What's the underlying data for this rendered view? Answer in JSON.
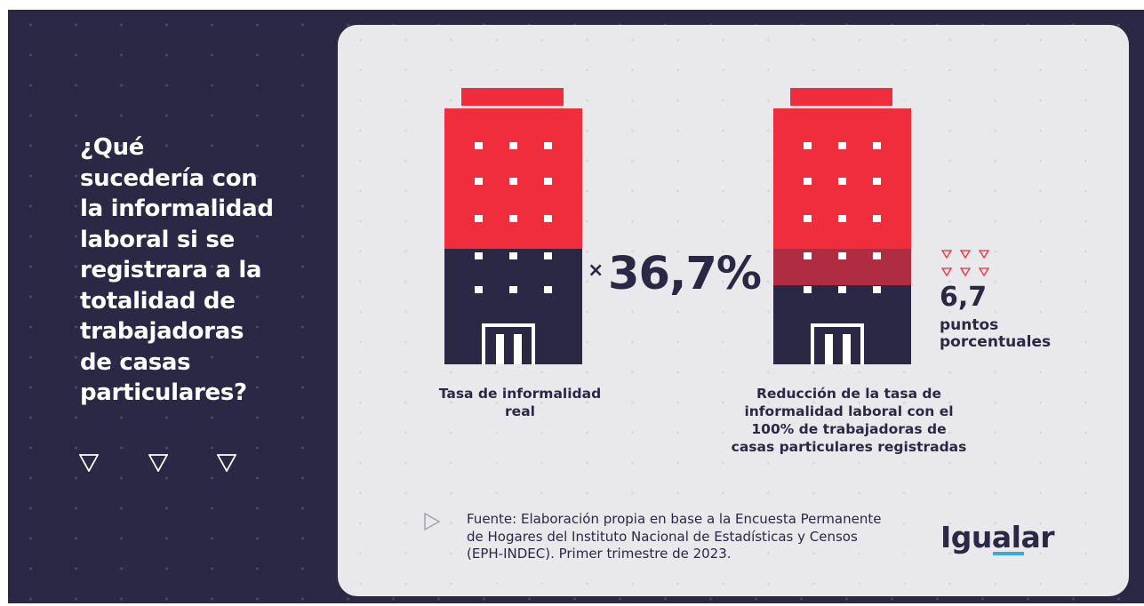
{
  "question": "¿Qué\nsucedería con\nla informalidad\nlaboral si se\nregistrara a la\ntotalidad de\ntrabajadoras\nde casas\nparticulares?",
  "chart_data": {
    "type": "pictogram",
    "metrics": [
      {
        "label": "Tasa de informalidad\nreal",
        "value": 36.7,
        "display": "36,7%",
        "color": "#ef2d3c"
      },
      {
        "label": "Reducción de la tasa de\ninformalidad laboral con el\n100% de trabajadoras de\ncasas particulares registradas",
        "value": 6.7,
        "display": "6,7",
        "unit": "puntos\nporcentuales",
        "color": "#b02c42"
      }
    ]
  },
  "value_prefix": "×",
  "source": "Fuente: Elaboración propia en base a la Encuesta Permanente\nde Hogares del Instituto Nacional de Estadísticas y Censos\n(EPH-INDEC). Primer trimestre de 2023.",
  "logo": {
    "main": "Igual",
    "accent": "ar"
  },
  "colors": {
    "background": "#2b2845",
    "card": "#e9e9ec",
    "red": "#ef2d3c",
    "navy": "#2b2845",
    "reduction": "#b02c42",
    "logo_underline": "#35a9e0"
  },
  "icons": [
    "triangle-down-outline-icon",
    "play-outline-icon",
    "building-icon"
  ]
}
